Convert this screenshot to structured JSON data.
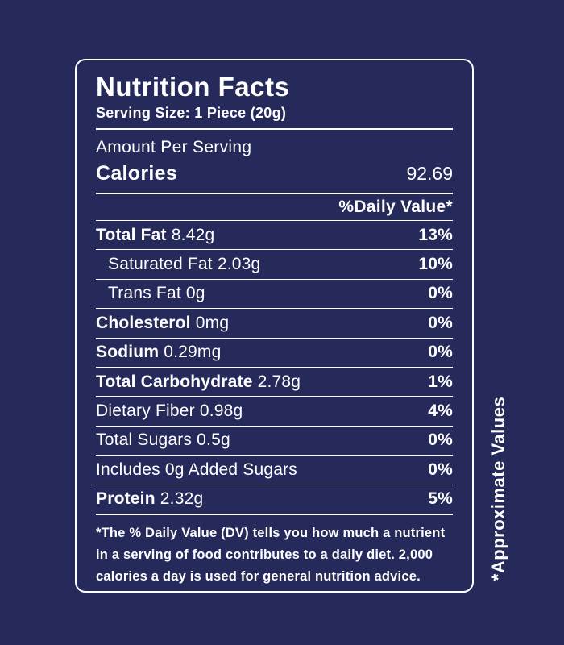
{
  "theme": {
    "background": "#262a5b",
    "foreground": "#ffffff"
  },
  "label": {
    "title": "Nutrition Facts",
    "serving_size": "Serving Size: 1 Piece (20g)",
    "amount_per_serving": "Amount Per Serving",
    "calories_label": "Calories",
    "calories_value": "92.69",
    "daily_value_header": "%Daily Value*",
    "rows": [
      {
        "name": "Total Fat",
        "amount": "8.42g",
        "percent": "13%",
        "bold": true,
        "indent": false
      },
      {
        "name": "Saturated Fat",
        "amount": "2.03g",
        "percent": "10%",
        "bold": false,
        "indent": true
      },
      {
        "name": "Trans Fat",
        "amount": "0g",
        "percent": "0%",
        "bold": false,
        "indent": true
      },
      {
        "name": "Cholesterol",
        "amount": "0mg",
        "percent": "0%",
        "bold": true,
        "indent": false
      },
      {
        "name": "Sodium",
        "amount": "0.29mg",
        "percent": "0%",
        "bold": true,
        "indent": false
      },
      {
        "name": "Total Carbohydrate",
        "amount": "2.78g",
        "percent": "1%",
        "bold": true,
        "indent": false
      },
      {
        "name": "Dietary Fiber",
        "amount": "0.98g",
        "percent": "4%",
        "bold": false,
        "indent": false
      },
      {
        "name": "Total Sugars",
        "amount": "0.5g",
        "percent": "0%",
        "bold": false,
        "indent": false
      },
      {
        "name": "Includes 0g Added Sugars",
        "amount": "",
        "percent": "0%",
        "bold": false,
        "indent": false
      },
      {
        "name": "Protein",
        "amount": "2.32g",
        "percent": "5%",
        "bold": true,
        "indent": false
      }
    ],
    "footnote": "*The % Daily Value (DV) tells you how much a nutrient in a serving of food contributes to a daily diet. 2,000 calories a day is used for general nutrition advice.",
    "side_note": "*Approximate Values"
  }
}
